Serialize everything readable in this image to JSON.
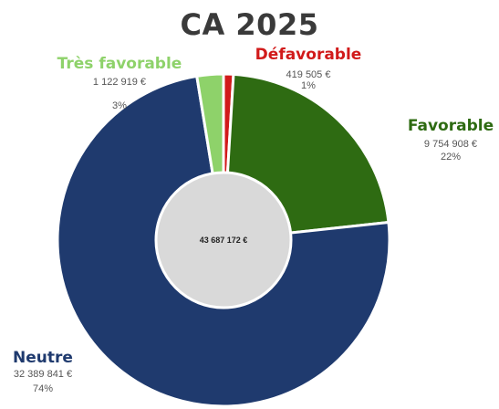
{
  "chart_data": {
    "type": "pie",
    "title": "CA 2025",
    "total_label": "43 687 172 €",
    "categories": [
      "Défavorable",
      "Favorable",
      "Neutre",
      "Très favorable"
    ],
    "values": [
      419505,
      9754908,
      32389841,
      1122919
    ],
    "value_labels": [
      "419 505 €",
      "9 754 908 €",
      "32 389 841 €",
      "1 122 919 €"
    ],
    "percent_labels": [
      "1%",
      "22%",
      "74%",
      "3%"
    ],
    "colors": [
      "#d11a1a",
      "#2e6b12",
      "#1f3a6e",
      "#8ed26a"
    ],
    "label_colors": [
      "#d11a1a",
      "#2e6b12",
      "#1f3a6e",
      "#8ed26a"
    ]
  }
}
